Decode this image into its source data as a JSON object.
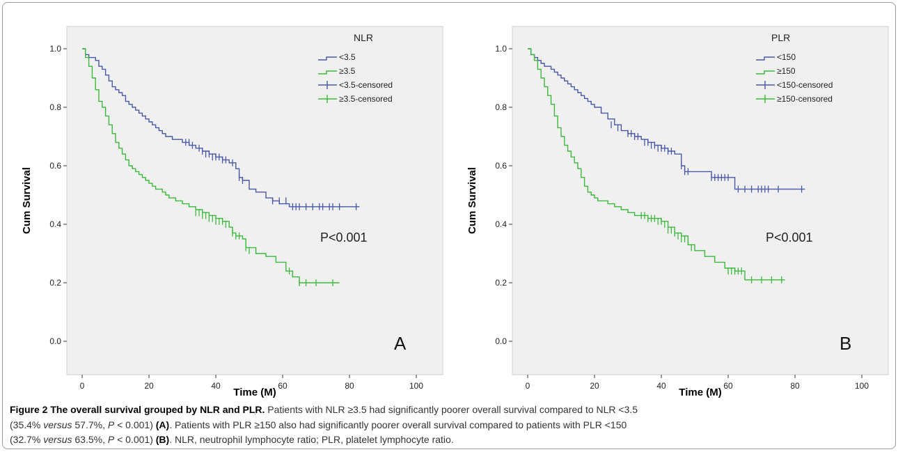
{
  "colors": {
    "group_low": "#4a56a6",
    "group_high": "#3cb83c",
    "plot_bg": "#f0f0f0"
  },
  "chart_data": [
    {
      "type": "line",
      "panel_label": "A",
      "legend_title": "NLR",
      "legend": [
        "<3.5",
        "≥3.5",
        "<3.5-censored",
        "≥3.5-censored"
      ],
      "xlabel": "Time (M)",
      "ylabel": "Cum Survival",
      "xlim": [
        0,
        100
      ],
      "ylim": [
        0,
        1
      ],
      "xticks": [
        "0",
        "20",
        "40",
        "60",
        "80",
        "100"
      ],
      "yticks": [
        "0.0",
        "0.2",
        "0.4",
        "0.6",
        "0.8",
        "1.0"
      ],
      "annotation": "P<0.001",
      "series": [
        {
          "name": "<3.5",
          "x": [
            0,
            1,
            2,
            3,
            4,
            5,
            6,
            7,
            8,
            9,
            10,
            11,
            12,
            13,
            14,
            15,
            16,
            17,
            18,
            19,
            20,
            21,
            22,
            23,
            24,
            25,
            26,
            27,
            28,
            30,
            32,
            34,
            36,
            38,
            40,
            42,
            44,
            46,
            47,
            48,
            50,
            52,
            55,
            57,
            59,
            62,
            83
          ],
          "y": [
            1.0,
            0.98,
            0.97,
            0.97,
            0.96,
            0.94,
            0.93,
            0.91,
            0.89,
            0.87,
            0.86,
            0.85,
            0.84,
            0.82,
            0.81,
            0.8,
            0.79,
            0.78,
            0.77,
            0.76,
            0.75,
            0.74,
            0.73,
            0.72,
            0.71,
            0.7,
            0.7,
            0.69,
            0.69,
            0.68,
            0.67,
            0.66,
            0.65,
            0.64,
            0.63,
            0.62,
            0.61,
            0.59,
            0.56,
            0.55,
            0.52,
            0.51,
            0.49,
            0.48,
            0.47,
            0.46,
            0.46
          ],
          "censored_x": [
            31,
            32,
            33,
            35,
            36,
            37,
            38,
            39,
            40,
            41,
            42,
            43,
            45,
            47,
            48,
            57,
            59,
            61,
            63,
            64,
            65,
            67,
            69,
            71,
            72,
            74,
            75,
            77,
            82
          ],
          "censored_y": [
            0.68,
            0.68,
            0.67,
            0.66,
            0.65,
            0.64,
            0.64,
            0.63,
            0.63,
            0.63,
            0.62,
            0.62,
            0.61,
            0.56,
            0.55,
            0.48,
            0.48,
            0.48,
            0.46,
            0.46,
            0.46,
            0.46,
            0.46,
            0.46,
            0.46,
            0.46,
            0.46,
            0.46,
            0.46
          ]
        },
        {
          "name": "≥3.5",
          "x": [
            0,
            1,
            2,
            3,
            4,
            5,
            6,
            7,
            8,
            9,
            10,
            11,
            12,
            13,
            14,
            15,
            16,
            17,
            18,
            19,
            20,
            21,
            22,
            23,
            24,
            25,
            26,
            28,
            30,
            32,
            34,
            36,
            38,
            40,
            42,
            44,
            45,
            46,
            48,
            49,
            52,
            55,
            58,
            61,
            63,
            65,
            77
          ],
          "y": [
            1.0,
            0.97,
            0.94,
            0.9,
            0.86,
            0.82,
            0.8,
            0.77,
            0.74,
            0.71,
            0.68,
            0.66,
            0.64,
            0.62,
            0.6,
            0.59,
            0.58,
            0.57,
            0.56,
            0.55,
            0.54,
            0.53,
            0.52,
            0.52,
            0.51,
            0.5,
            0.49,
            0.48,
            0.47,
            0.46,
            0.45,
            0.44,
            0.43,
            0.42,
            0.41,
            0.39,
            0.37,
            0.36,
            0.35,
            0.32,
            0.3,
            0.29,
            0.27,
            0.24,
            0.22,
            0.2,
            0.2
          ],
          "censored_x": [
            34,
            35,
            36,
            37,
            38,
            39,
            40,
            41,
            42,
            43,
            45,
            46,
            47,
            49,
            50,
            62,
            63,
            65,
            67,
            70,
            75
          ],
          "censored_y": [
            0.44,
            0.44,
            0.43,
            0.43,
            0.42,
            0.42,
            0.41,
            0.41,
            0.41,
            0.4,
            0.37,
            0.36,
            0.36,
            0.32,
            0.31,
            0.24,
            0.23,
            0.2,
            0.2,
            0.2,
            0.2
          ]
        }
      ]
    },
    {
      "type": "line",
      "panel_label": "B",
      "legend_title": "PLR",
      "legend": [
        "<150",
        "≥150",
        "<150-censored",
        "≥150-censored"
      ],
      "xlabel": "Time (M)",
      "ylabel": "Cum Survival",
      "xlim": [
        0,
        100
      ],
      "ylim": [
        0,
        1
      ],
      "xticks": [
        "0",
        "20",
        "40",
        "60",
        "80",
        "100"
      ],
      "yticks": [
        "0.0",
        "0.2",
        "0.4",
        "0.6",
        "0.8",
        "1.0"
      ],
      "annotation": "P<0.001",
      "series": [
        {
          "name": "<150",
          "x": [
            0,
            1,
            2,
            3,
            4,
            5,
            6,
            7,
            8,
            9,
            10,
            11,
            12,
            13,
            14,
            15,
            16,
            17,
            18,
            19,
            20,
            22,
            24,
            26,
            28,
            30,
            32,
            34,
            36,
            38,
            40,
            42,
            44,
            46,
            47,
            50,
            55,
            60,
            62,
            83
          ],
          "y": [
            1.0,
            0.98,
            0.97,
            0.96,
            0.95,
            0.94,
            0.94,
            0.93,
            0.92,
            0.91,
            0.9,
            0.89,
            0.88,
            0.87,
            0.86,
            0.85,
            0.84,
            0.83,
            0.82,
            0.81,
            0.8,
            0.78,
            0.76,
            0.74,
            0.72,
            0.71,
            0.7,
            0.69,
            0.68,
            0.67,
            0.66,
            0.65,
            0.64,
            0.6,
            0.58,
            0.58,
            0.56,
            0.56,
            0.52,
            0.52
          ],
          "censored_x": [
            25,
            27,
            30,
            31,
            32,
            33,
            35,
            36,
            37,
            38,
            39,
            40,
            41,
            42,
            43,
            46,
            47,
            48,
            55,
            56,
            57,
            58,
            59,
            60,
            63,
            65,
            67,
            69,
            70,
            71,
            72,
            75,
            82
          ],
          "censored_y": [
            0.74,
            0.73,
            0.71,
            0.71,
            0.7,
            0.7,
            0.68,
            0.68,
            0.67,
            0.67,
            0.66,
            0.66,
            0.66,
            0.65,
            0.65,
            0.6,
            0.58,
            0.58,
            0.56,
            0.56,
            0.56,
            0.56,
            0.56,
            0.56,
            0.52,
            0.52,
            0.52,
            0.52,
            0.52,
            0.52,
            0.52,
            0.52,
            0.52
          ]
        },
        {
          "name": "≥150",
          "x": [
            0,
            1,
            2,
            3,
            4,
            5,
            6,
            7,
            8,
            9,
            10,
            11,
            12,
            13,
            14,
            15,
            16,
            17,
            18,
            19,
            20,
            21,
            22,
            24,
            26,
            28,
            30,
            32,
            34,
            36,
            38,
            40,
            42,
            44,
            46,
            48,
            50,
            53,
            56,
            59,
            62,
            65,
            77
          ],
          "y": [
            1.0,
            0.98,
            0.96,
            0.93,
            0.9,
            0.87,
            0.84,
            0.81,
            0.77,
            0.73,
            0.7,
            0.67,
            0.65,
            0.63,
            0.61,
            0.59,
            0.56,
            0.53,
            0.51,
            0.5,
            0.49,
            0.48,
            0.48,
            0.47,
            0.46,
            0.45,
            0.44,
            0.43,
            0.43,
            0.42,
            0.42,
            0.41,
            0.39,
            0.37,
            0.36,
            0.33,
            0.31,
            0.29,
            0.27,
            0.25,
            0.24,
            0.21,
            0.21
          ],
          "censored_x": [
            34,
            35,
            36,
            37,
            38,
            39,
            40,
            41,
            42,
            43,
            44,
            45,
            46,
            47,
            48,
            49,
            60,
            61,
            62,
            63,
            64,
            67,
            70,
            73,
            76
          ],
          "censored_y": [
            0.43,
            0.43,
            0.42,
            0.42,
            0.42,
            0.41,
            0.41,
            0.4,
            0.38,
            0.38,
            0.37,
            0.36,
            0.35,
            0.35,
            0.34,
            0.32,
            0.24,
            0.24,
            0.24,
            0.24,
            0.24,
            0.21,
            0.21,
            0.21,
            0.21
          ]
        }
      ]
    }
  ],
  "caption": {
    "title": "Figure 2 The overall survival grouped by NLR and PLR.",
    "s1": " Patients with NLR ≥3.5 had significantly poorer overall survival compared to NLR <3.5",
    "s2": "(35.4% ",
    "versus": "versus",
    "s3": " 57.7%, ",
    "p": "P",
    "s4": " < 0.001) ",
    "labelA": "(A)",
    "s5": ". Patients with PLR ≥150 also had significantly poorer overall survival compared to patients with PLR <150",
    "s6": "(32.7% ",
    "s7": " 63.5%, ",
    "s8": " < 0.001) ",
    "labelB": "(B)",
    "s9": ". NLR, neutrophil lymphocyte ratio; PLR, platelet lymphocyte ratio."
  }
}
